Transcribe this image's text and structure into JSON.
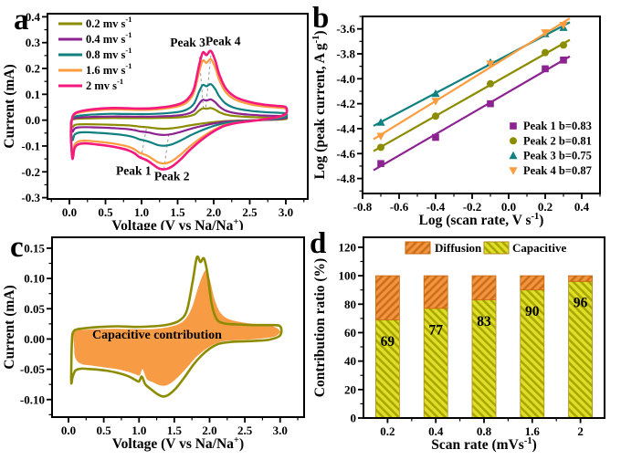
{
  "figure": {
    "background": "#ffffff"
  },
  "chart_data": [
    {
      "panel_label": "a",
      "type": "line",
      "subtype": "cyclic-voltammetry",
      "xlabel": "Voltage (V vs Na/Na^+^)",
      "ylabel": "Current (mA)",
      "xlim": [
        -0.304,
        3.304
      ],
      "ylim": [
        -0.305,
        0.412
      ],
      "xticks": {
        "from": 0.0,
        "to": 3.0,
        "step": 0.5,
        "minor": 0.25,
        "dec": 1
      },
      "yticks": {
        "from": -0.3,
        "to": 0.4,
        "step": 0.1,
        "minor": 0.05,
        "dec": 1
      },
      "series": [
        {
          "label": "0.2 mv s^-1^",
          "color": "#8C8C00",
          "scale": 0.175
        },
        {
          "label": "0.4 mv s^-1^",
          "color": "#8C2390",
          "scale": 0.3
        },
        {
          "label": "0.8 mv s^-1^",
          "color": "#108080",
          "scale": 0.52
        },
        {
          "label": "1.6 mv s^-1^",
          "color": "#FB9C3F",
          "scale": 0.88
        },
        {
          "label": "2 mv s^-1^",
          "color": "#F5197D",
          "scale": 1.0
        }
      ],
      "base_loop": [
        [
          0.03,
          -0.005
        ],
        [
          0.05,
          0.018
        ],
        [
          0.1,
          0.03
        ],
        [
          0.22,
          0.038
        ],
        [
          0.4,
          0.044
        ],
        [
          0.6,
          0.047
        ],
        [
          0.8,
          0.046
        ],
        [
          1.0,
          0.045
        ],
        [
          1.2,
          0.047
        ],
        [
          1.4,
          0.054
        ],
        [
          1.55,
          0.065
        ],
        [
          1.65,
          0.085
        ],
        [
          1.73,
          0.125
        ],
        [
          1.8,
          0.215
        ],
        [
          1.85,
          0.262
        ],
        [
          1.9,
          0.252
        ],
        [
          1.96,
          0.268
        ],
        [
          2.02,
          0.232
        ],
        [
          2.08,
          0.175
        ],
        [
          2.17,
          0.122
        ],
        [
          2.3,
          0.09
        ],
        [
          2.5,
          0.07
        ],
        [
          2.7,
          0.06
        ],
        [
          2.88,
          0.055
        ],
        [
          3.0,
          0.05
        ],
        [
          3.0,
          0.025
        ],
        [
          2.88,
          0.012
        ],
        [
          2.7,
          0.003
        ],
        [
          2.5,
          -0.004
        ],
        [
          2.3,
          -0.012
        ],
        [
          2.15,
          -0.022
        ],
        [
          2.02,
          -0.04
        ],
        [
          1.9,
          -0.062
        ],
        [
          1.78,
          -0.088
        ],
        [
          1.66,
          -0.118
        ],
        [
          1.54,
          -0.152
        ],
        [
          1.43,
          -0.178
        ],
        [
          1.33,
          -0.19
        ],
        [
          1.24,
          -0.187
        ],
        [
          1.16,
          -0.172
        ],
        [
          1.09,
          -0.158
        ],
        [
          1.03,
          -0.15
        ],
        [
          0.97,
          -0.143
        ],
        [
          0.9,
          -0.128
        ],
        [
          0.82,
          -0.117
        ],
        [
          0.7,
          -0.108
        ],
        [
          0.55,
          -0.1
        ],
        [
          0.38,
          -0.094
        ],
        [
          0.22,
          -0.09
        ],
        [
          0.12,
          -0.094
        ],
        [
          0.07,
          -0.11
        ],
        [
          0.045,
          -0.15
        ],
        [
          0.03,
          -0.115
        ],
        [
          0.02,
          -0.05
        ]
      ],
      "annotations": [
        {
          "text": "Peak 3",
          "x": 1.64,
          "y": 0.285
        },
        {
          "text": "Peak 4",
          "x": 2.13,
          "y": 0.29
        },
        {
          "text": "Peak 1",
          "x": 0.89,
          "y": -0.212
        },
        {
          "text": "Peak 2",
          "x": 1.42,
          "y": -0.232
        }
      ],
      "guide_lines": [
        [
          1.8,
          0.245,
          1.86,
          0.035
        ],
        [
          1.96,
          0.25,
          1.89,
          0.045
        ],
        [
          0.99,
          -0.148,
          1.07,
          -0.028
        ],
        [
          1.31,
          -0.19,
          1.38,
          -0.048
        ]
      ]
    },
    {
      "panel_label": "b",
      "type": "scatter",
      "subtype": "log-log-fit",
      "xlabel": "Log (scan rate, V s^-1^)",
      "ylabel": "Log (peak current, A g^-1^)",
      "xlim": [
        -0.8,
        0.5
      ],
      "ylim": [
        -4.92,
        -3.5
      ],
      "xticks": {
        "from": -0.8,
        "to": 0.4,
        "step": 0.2,
        "minor": 0.1,
        "dec": 1
      },
      "yticks": {
        "from": -4.8,
        "to": -3.6,
        "step": 0.2,
        "minor": 0.1,
        "dec": 1
      },
      "x": [
        -0.7,
        -0.4,
        -0.1,
        0.2,
        0.3
      ],
      "series": [
        {
          "label": "Peak 1 b=0.83",
          "marker": "square",
          "color": "#8C2390",
          "y": [
            -4.68,
            -4.47,
            -4.2,
            -3.92,
            -3.85
          ]
        },
        {
          "label": "Peak 2 b=0.81",
          "marker": "circle",
          "color": "#8C8C00",
          "y": [
            -4.55,
            -4.3,
            -4.04,
            -3.79,
            -3.73
          ]
        },
        {
          "label": "Peak 3 b=0.75",
          "marker": "triangle-up",
          "color": "#108080",
          "y": [
            -4.35,
            -4.12,
            -3.87,
            -3.64,
            -3.59
          ]
        },
        {
          "label": "Peak 4 b=0.87",
          "marker": "triangle-down",
          "color": "#FB9C3F",
          "y": [
            -4.46,
            -4.18,
            -3.88,
            -3.63,
            -3.57
          ]
        }
      ]
    },
    {
      "panel_label": "c",
      "type": "area",
      "subtype": "cv-capacitive-contribution",
      "xlabel": "Voltage (V vs Na/Na^+^)",
      "ylabel": "Current (mA)",
      "xlim": [
        -0.233,
        3.34
      ],
      "ylim": [
        -0.129,
        0.168
      ],
      "xticks": {
        "from": 0.0,
        "to": 3.0,
        "step": 0.5,
        "minor": 0.25,
        "dec": 1
      },
      "yticks": {
        "from": -0.1,
        "to": 0.15,
        "step": 0.05,
        "minor": 0.025,
        "dec": 2
      },
      "fill_label": {
        "text": "Capacitive contribution",
        "x": 1.255,
        "y": 0.001
      },
      "fill_color": "#F79B45",
      "line_color": "#8C8C00",
      "total_loop": [
        [
          0.04,
          -0.045
        ],
        [
          0.05,
          0.0
        ],
        [
          0.07,
          0.012
        ],
        [
          0.12,
          0.016
        ],
        [
          0.25,
          0.018
        ],
        [
          0.45,
          0.02
        ],
        [
          0.7,
          0.021
        ],
        [
          0.95,
          0.02
        ],
        [
          1.2,
          0.021
        ],
        [
          1.42,
          0.024
        ],
        [
          1.58,
          0.031
        ],
        [
          1.68,
          0.048
        ],
        [
          1.76,
          0.095
        ],
        [
          1.82,
          0.135
        ],
        [
          1.87,
          0.127
        ],
        [
          1.92,
          0.133
        ],
        [
          1.97,
          0.108
        ],
        [
          2.03,
          0.058
        ],
        [
          2.1,
          0.033
        ],
        [
          2.2,
          0.026
        ],
        [
          2.4,
          0.024
        ],
        [
          2.65,
          0.023
        ],
        [
          2.85,
          0.023
        ],
        [
          3.0,
          0.021
        ],
        [
          3.0,
          0.006
        ],
        [
          2.85,
          -0.001
        ],
        [
          2.65,
          -0.003
        ],
        [
          2.45,
          -0.004
        ],
        [
          2.28,
          -0.005
        ],
        [
          2.13,
          -0.008
        ],
        [
          2.0,
          -0.016
        ],
        [
          1.88,
          -0.028
        ],
        [
          1.76,
          -0.044
        ],
        [
          1.64,
          -0.064
        ],
        [
          1.52,
          -0.082
        ],
        [
          1.42,
          -0.092
        ],
        [
          1.34,
          -0.095
        ],
        [
          1.26,
          -0.091
        ],
        [
          1.17,
          -0.083
        ],
        [
          1.09,
          -0.075
        ],
        [
          1.04,
          -0.062
        ],
        [
          1.0,
          -0.07
        ],
        [
          0.94,
          -0.067
        ],
        [
          0.84,
          -0.061
        ],
        [
          0.7,
          -0.056
        ],
        [
          0.52,
          -0.052
        ],
        [
          0.34,
          -0.05
        ],
        [
          0.18,
          -0.049
        ],
        [
          0.1,
          -0.052
        ],
        [
          0.06,
          -0.062
        ],
        [
          0.04,
          -0.073
        ]
      ],
      "capacitive_loop": [
        [
          0.08,
          0.013
        ],
        [
          0.2,
          0.015
        ],
        [
          0.4,
          0.016
        ],
        [
          0.65,
          0.017
        ],
        [
          0.95,
          0.016
        ],
        [
          1.25,
          0.017
        ],
        [
          1.5,
          0.022
        ],
        [
          1.65,
          0.032
        ],
        [
          1.75,
          0.052
        ],
        [
          1.83,
          0.082
        ],
        [
          1.9,
          0.105
        ],
        [
          1.95,
          0.113
        ],
        [
          2.0,
          0.1
        ],
        [
          2.06,
          0.07
        ],
        [
          2.13,
          0.048
        ],
        [
          2.22,
          0.036
        ],
        [
          2.35,
          0.03
        ],
        [
          2.55,
          0.026
        ],
        [
          2.75,
          0.024
        ],
        [
          2.92,
          0.02
        ],
        [
          3.0,
          0.012
        ],
        [
          2.92,
          0.004
        ],
        [
          2.75,
          0.001
        ],
        [
          2.55,
          -0.001
        ],
        [
          2.35,
          -0.002
        ],
        [
          2.18,
          -0.004
        ],
        [
          2.04,
          -0.01
        ],
        [
          1.92,
          -0.019
        ],
        [
          1.8,
          -0.031
        ],
        [
          1.68,
          -0.047
        ],
        [
          1.56,
          -0.062
        ],
        [
          1.46,
          -0.072
        ],
        [
          1.37,
          -0.077
        ],
        [
          1.28,
          -0.076
        ],
        [
          1.19,
          -0.071
        ],
        [
          1.11,
          -0.066
        ],
        [
          1.05,
          -0.05
        ],
        [
          1.01,
          -0.06
        ],
        [
          0.94,
          -0.058
        ],
        [
          0.84,
          -0.054
        ],
        [
          0.7,
          -0.05
        ],
        [
          0.52,
          -0.047
        ],
        [
          0.34,
          -0.044
        ],
        [
          0.18,
          -0.041
        ],
        [
          0.1,
          -0.032
        ],
        [
          0.08,
          -0.015
        ]
      ]
    },
    {
      "panel_label": "d",
      "type": "bar",
      "subtype": "stacked-percentage",
      "xlabel": "Scan rate (mVs^-1^)",
      "ylabel": "Contribution ratio (%)",
      "ylim": [
        0,
        127
      ],
      "yticks": {
        "from": 0,
        "to": 120,
        "step": 20,
        "minor": 10,
        "dec": 0
      },
      "categories": [
        "0.2",
        "0.4",
        "0.8",
        "1.6",
        "2"
      ],
      "series": [
        {
          "label": "Diffusion",
          "color": "#F29440",
          "hatch": "#CC6F1A",
          "angle": 45
        },
        {
          "label": "Capacitive",
          "color": "#E0DE28",
          "hatch": "#A8A800",
          "angle": -45
        }
      ],
      "capacitive": [
        69,
        77,
        83,
        90,
        96
      ],
      "diffusion": [
        31,
        23,
        17,
        10,
        4
      ],
      "bar_labels": [
        "69",
        "77",
        "83",
        "90",
        "96"
      ]
    }
  ]
}
